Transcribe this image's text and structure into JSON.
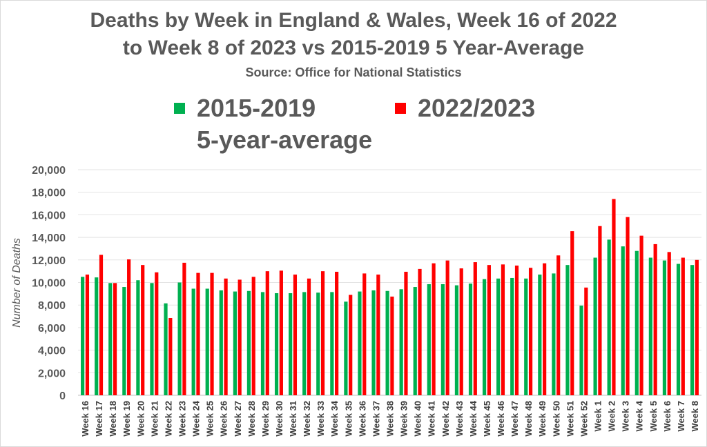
{
  "title_line1": "Deaths by Week in England & Wales, Week 16 of 2022",
  "title_line2": "to Week 8 of 2023 vs 2015-2019 5 Year-Average",
  "subtitle": "Source: Office for National Statistics",
  "legend": {
    "avg_line1": "2015-2019",
    "avg_line2": "5-year-average",
    "current": "2022/2023"
  },
  "colors": {
    "avg": "#00b050",
    "current": "#ff0000"
  },
  "chart_data": {
    "type": "bar",
    "title": "Deaths by Week in England & Wales, Week 16 of 2022 to Week 8 of 2023 vs 2015-2019 5 Year-Average",
    "ylabel": "Number of Deaths",
    "xlabel": "",
    "ylim": [
      0,
      20000
    ],
    "yticks": [
      0,
      2000,
      4000,
      6000,
      8000,
      10000,
      12000,
      14000,
      16000,
      18000,
      20000
    ],
    "ytick_labels": [
      "0",
      "2,000",
      "4,000",
      "6,000",
      "8,000",
      "10,000",
      "12,000",
      "14,000",
      "16,000",
      "18,000",
      "20,000"
    ],
    "grid": true,
    "legend_position": "top",
    "categories": [
      "Week 16",
      "Week 17",
      "Week 18",
      "Week 19",
      "Week 20",
      "Week 21",
      "Week 22",
      "Week 23",
      "Week 24",
      "Week 25",
      "Week 26",
      "Week 27",
      "Week 28",
      "Week 29",
      "Week 30",
      "Week 31",
      "Week 32",
      "Week 33",
      "Week 34",
      "Week 35",
      "Week 36",
      "Week 37",
      "Week 38",
      "Week 39",
      "Week 40",
      "Week 41",
      "Week 42",
      "Week 43",
      "Week 44",
      "Week 45",
      "Week 46",
      "Week 47",
      "Week 48",
      "Week 49",
      "Week 50",
      "Week 51",
      "Week 52",
      "Week 1",
      "Week 2",
      "Week 3",
      "Week 4",
      "Week 5",
      "Week 6",
      "Week 7",
      "Week 8"
    ],
    "series": [
      {
        "name": "2015-2019 5-year-average",
        "color": "#00b050",
        "values": [
          10500,
          10450,
          9950,
          9600,
          10200,
          9950,
          8150,
          10000,
          9450,
          9450,
          9300,
          9200,
          9250,
          9150,
          9050,
          9050,
          9150,
          9100,
          9150,
          8300,
          9200,
          9300,
          9250,
          9400,
          9600,
          9850,
          9850,
          9750,
          9900,
          10300,
          10350,
          10400,
          10350,
          10700,
          10800,
          11550,
          7950,
          12200,
          13800,
          13200,
          12800,
          12200,
          11950,
          11650,
          11550
        ]
      },
      {
        "name": "2022/2023",
        "color": "#ff0000",
        "values": [
          10700,
          12450,
          9950,
          12050,
          11550,
          10900,
          6850,
          11750,
          10850,
          10850,
          10350,
          10250,
          10500,
          11000,
          11050,
          10700,
          10350,
          11000,
          10950,
          8900,
          10800,
          10700,
          8750,
          10950,
          11200,
          11700,
          11950,
          11250,
          11800,
          11550,
          11600,
          11500,
          11300,
          11700,
          12400,
          14550,
          9550,
          15000,
          17400,
          15800,
          14150,
          13400,
          12700,
          12200,
          12000
        ]
      }
    ]
  }
}
